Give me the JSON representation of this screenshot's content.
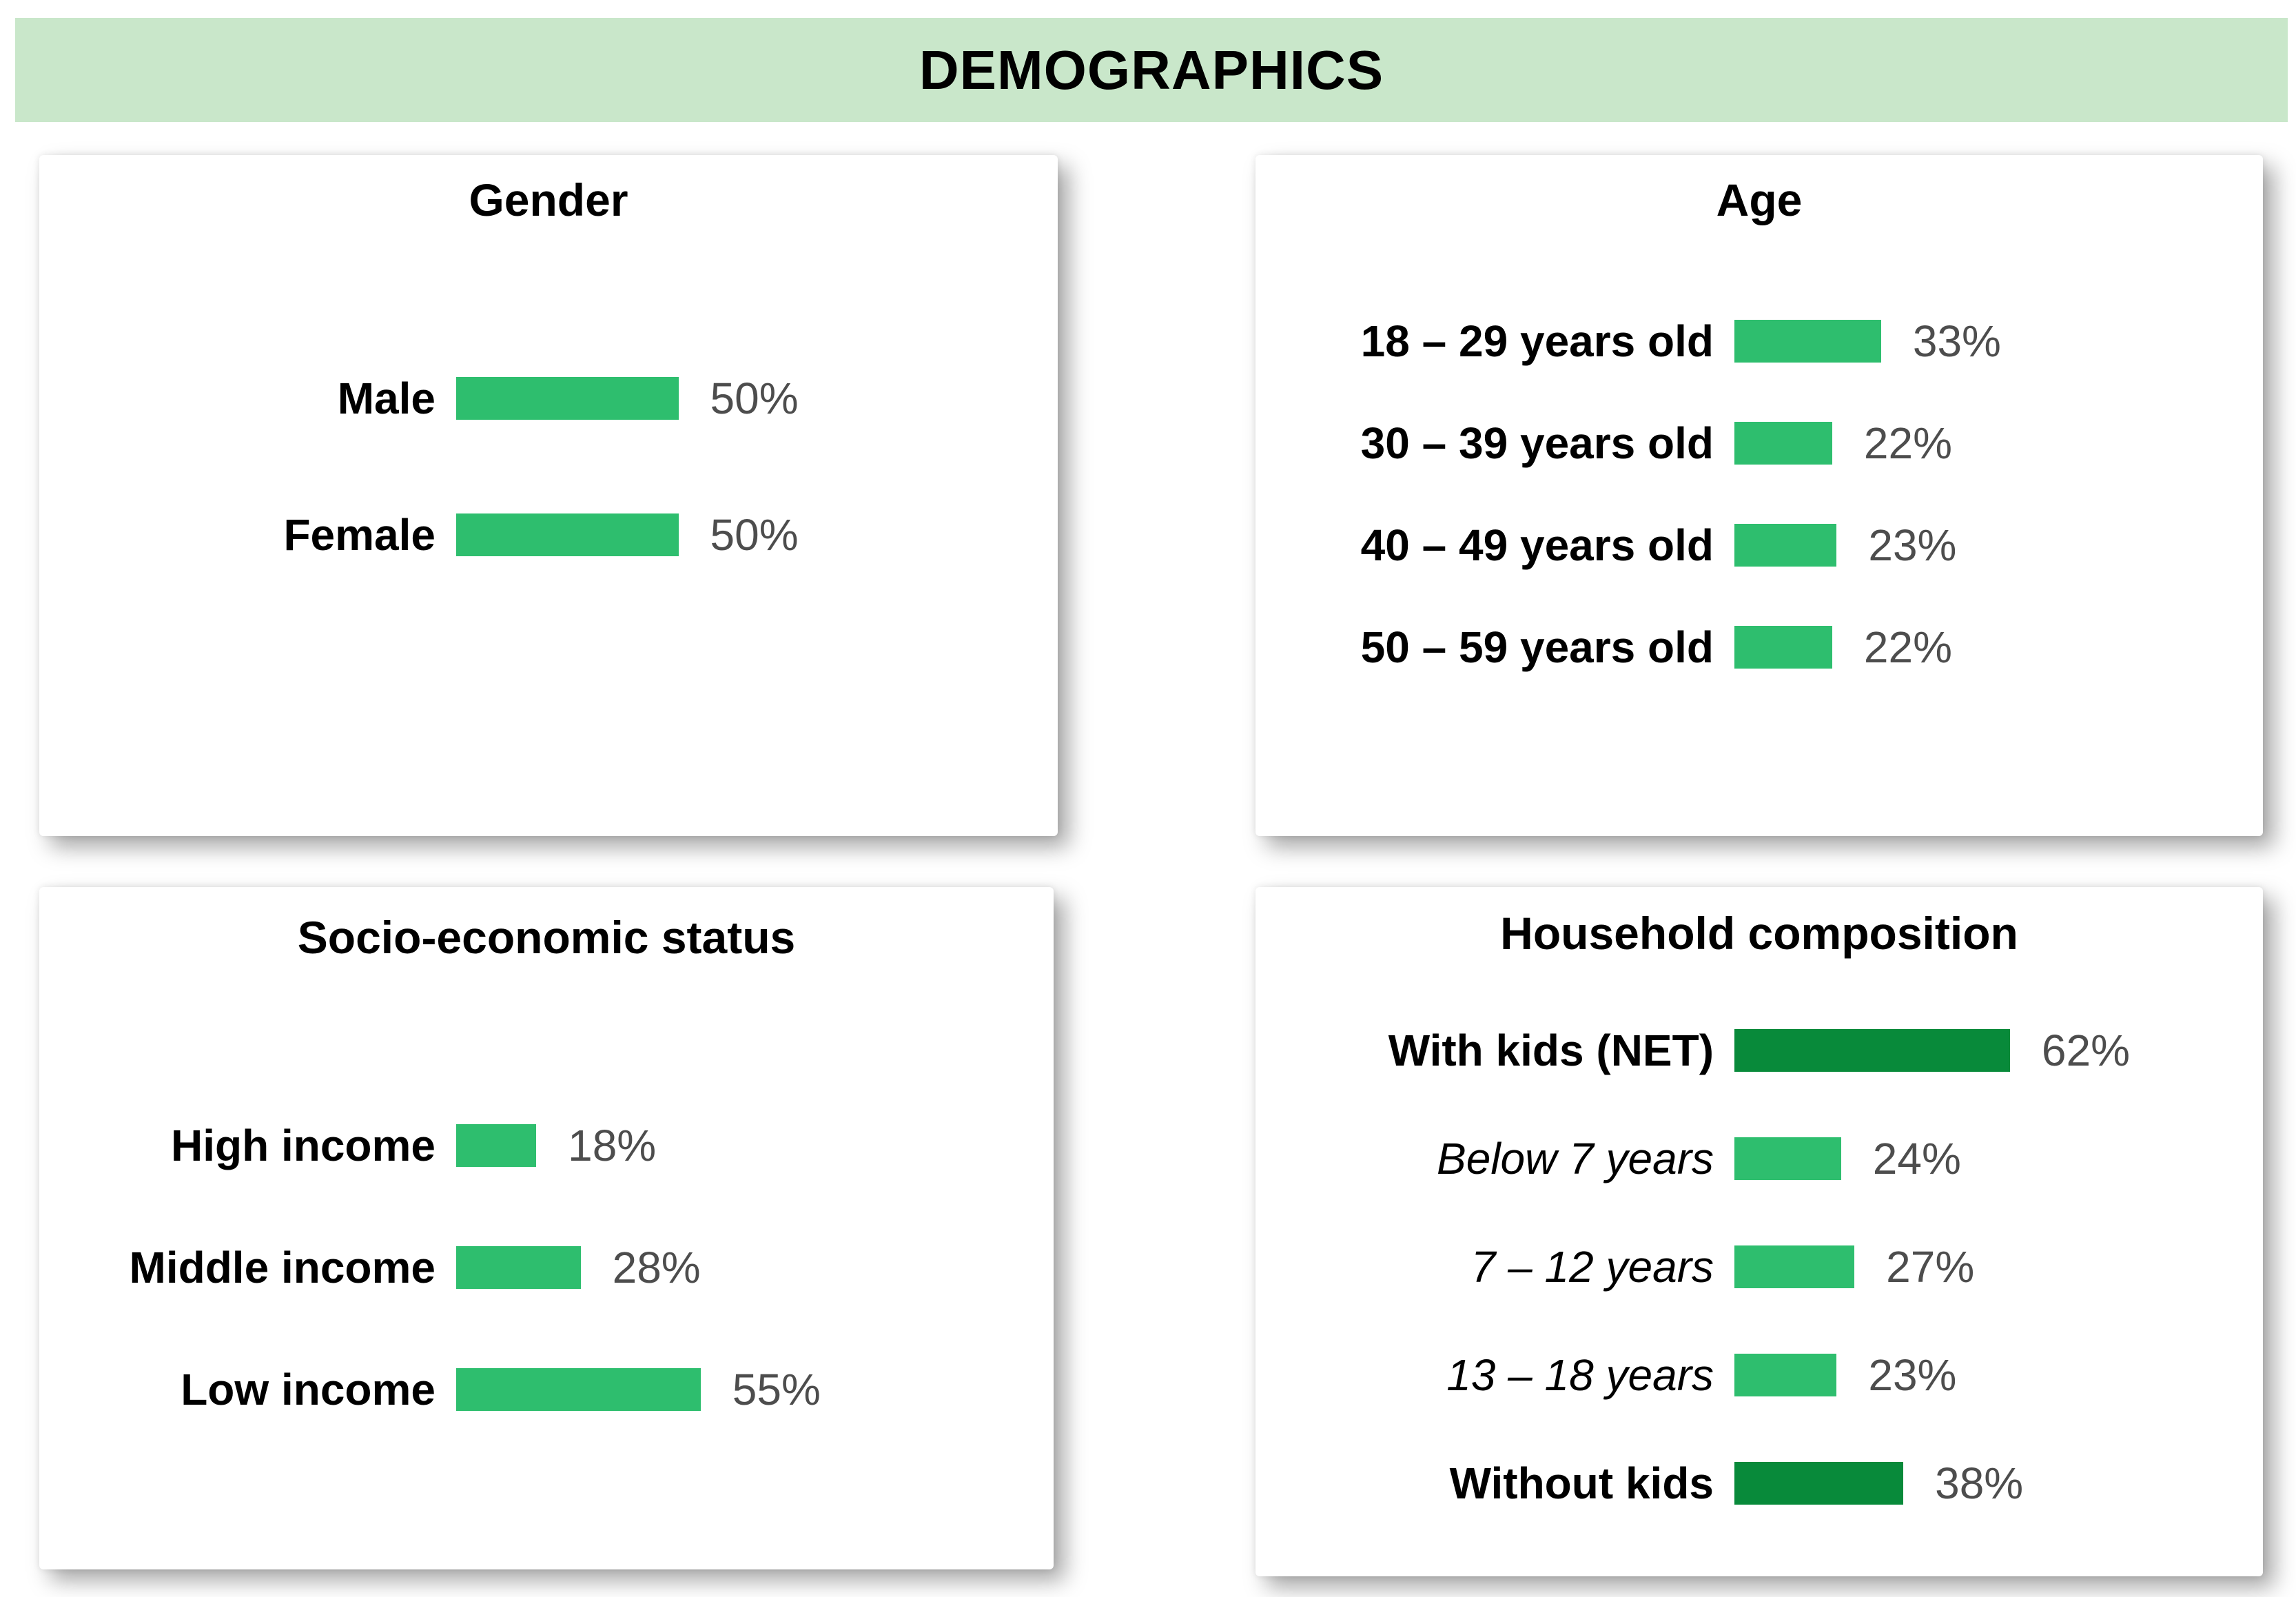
{
  "header": {
    "title": "DEMOGRAPHICS"
  },
  "colors": {
    "header_bg": "#C9E7CA",
    "bar_green": "#2EBE6E",
    "bar_dark_green": "#088A3A",
    "value_text": "#4D4D4D",
    "label_text": "#000000"
  },
  "chart_data": [
    {
      "type": "bar",
      "orientation": "horizontal",
      "panel": "top-left",
      "title": "Gender",
      "categories": [
        "Male",
        "Female"
      ],
      "values": [
        50,
        50
      ],
      "value_labels": [
        "50%",
        "50%"
      ],
      "bar_colors": [
        "#2EBE6E",
        "#2EBE6E"
      ],
      "xlim": [
        0,
        100
      ],
      "grid": false,
      "value_label_position": "right-of-bar"
    },
    {
      "type": "bar",
      "orientation": "horizontal",
      "panel": "top-right",
      "title": "Age",
      "categories": [
        "18 – 29 years old",
        "30 – 39 years old",
        "40 – 49 years old",
        "50 – 59 years old"
      ],
      "values": [
        33,
        22,
        23,
        22
      ],
      "value_labels": [
        "33%",
        "22%",
        "23%",
        "22%"
      ],
      "bar_colors": [
        "#2EBE6E",
        "#2EBE6E",
        "#2EBE6E",
        "#2EBE6E"
      ],
      "xlim": [
        0,
        100
      ],
      "grid": false,
      "value_label_position": "right-of-bar"
    },
    {
      "type": "bar",
      "orientation": "horizontal",
      "panel": "bottom-left",
      "title": "Socio-economic status",
      "categories": [
        "High income",
        "Middle income",
        "Low income"
      ],
      "values": [
        18,
        28,
        55
      ],
      "value_labels": [
        "18%",
        "28%",
        "55%"
      ],
      "bar_colors": [
        "#2EBE6E",
        "#2EBE6E",
        "#2EBE6E"
      ],
      "xlim": [
        0,
        100
      ],
      "grid": false,
      "value_label_position": "right-of-bar"
    },
    {
      "type": "bar",
      "orientation": "horizontal",
      "panel": "bottom-right",
      "title": "Household composition",
      "categories": [
        "With kids (NET)",
        "Below 7 years",
        "7 – 12 years",
        "13 – 18 years",
        "Without kids"
      ],
      "values": [
        62,
        24,
        27,
        23,
        38
      ],
      "value_labels": [
        "62%",
        "24%",
        "27%",
        "23%",
        "38%"
      ],
      "bar_colors": [
        "#088A3A",
        "#2EBE6E",
        "#2EBE6E",
        "#2EBE6E",
        "#088A3A"
      ],
      "category_styles": [
        "bold",
        "italic",
        "italic",
        "italic",
        "bold"
      ],
      "xlim": [
        0,
        100
      ],
      "grid": false,
      "value_label_position": "right-of-bar"
    }
  ]
}
